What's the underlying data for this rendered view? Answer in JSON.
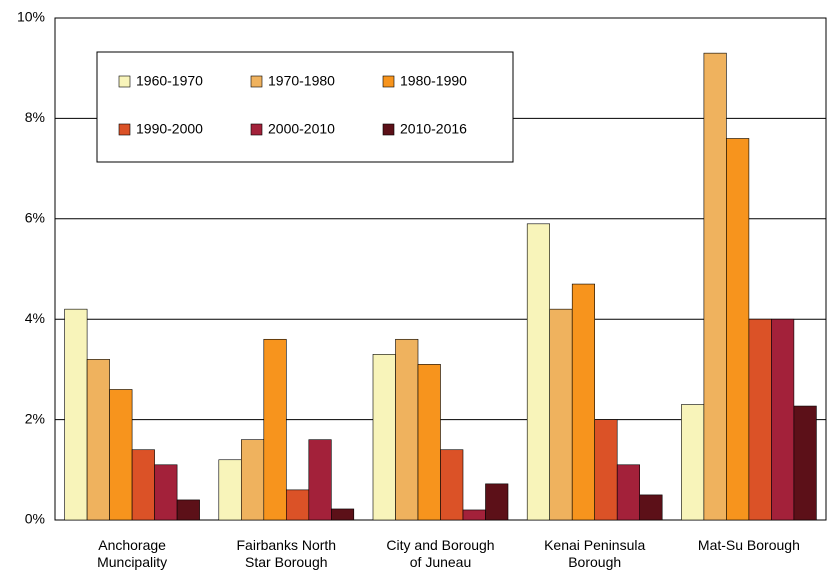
{
  "chart_data": {
    "type": "bar",
    "categories": [
      "Anchorage\nMuncipality",
      "Fairbanks North\nStar Borough",
      "City and Borough\nof Juneau",
      "Kenai Peninsula\nBorough",
      "Mat-Su Borough"
    ],
    "series": [
      {
        "name": "1960-1970",
        "color": "#f8f4ba",
        "values": [
          4.2,
          1.2,
          3.3,
          5.9,
          2.3
        ]
      },
      {
        "name": "1970-1980",
        "color": "#efb25e",
        "values": [
          3.2,
          1.6,
          3.6,
          4.2,
          9.3
        ]
      },
      {
        "name": "1980-1990",
        "color": "#f7941d",
        "values": [
          2.6,
          3.6,
          3.1,
          4.7,
          7.6
        ]
      },
      {
        "name": "1990-2000",
        "color": "#db5227",
        "values": [
          1.4,
          0.6,
          1.4,
          2.0,
          4.0
        ]
      },
      {
        "name": "2000-2010",
        "color": "#a3213a",
        "values": [
          1.1,
          1.6,
          0.2,
          1.1,
          4.0
        ]
      },
      {
        "name": "2010-2016",
        "color": "#5c1018",
        "values": [
          0.4,
          0.22,
          0.72,
          0.5,
          2.27
        ]
      }
    ],
    "ylim": [
      0,
      10
    ],
    "yticks": [
      {
        "value": 0,
        "label": "0%"
      },
      {
        "value": 2,
        "label": "2%"
      },
      {
        "value": 4,
        "label": "4%"
      },
      {
        "value": 6,
        "label": "6%"
      },
      {
        "value": 8,
        "label": "8%"
      },
      {
        "value": 10,
        "label": "10%"
      }
    ],
    "grid": true,
    "legend": "upper left"
  }
}
